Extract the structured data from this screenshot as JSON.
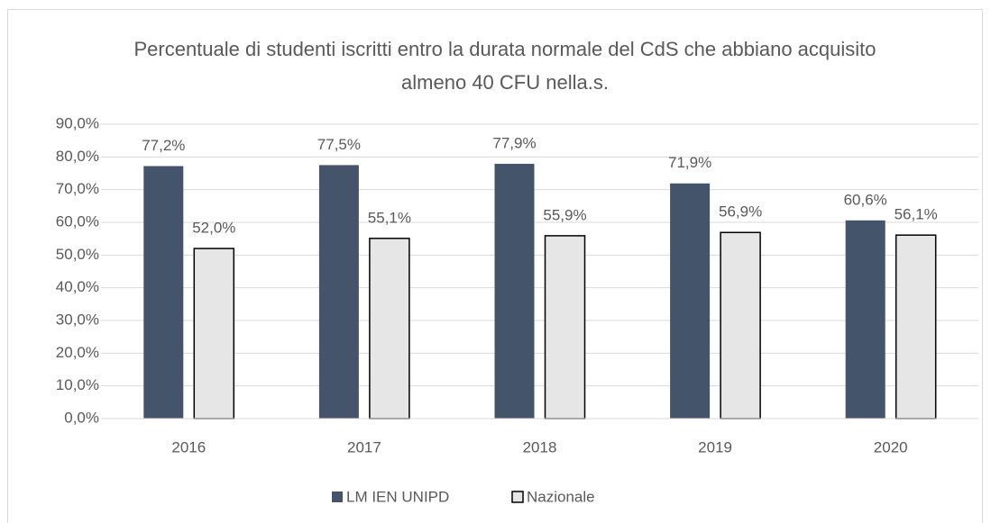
{
  "chart_data": {
    "type": "bar",
    "title": "Percentuale di studenti iscritti entro la durata normale del CdS che abbiano acquisito almeno 40 CFU nella.s.",
    "categories": [
      "2016",
      "2017",
      "2018",
      "2019",
      "2020"
    ],
    "series": [
      {
        "name": "LM IEN UNIPD",
        "color": "#44546a",
        "values": [
          77.2,
          77.5,
          77.9,
          71.9,
          60.6
        ],
        "value_labels": [
          "77,2%",
          "77,5%",
          "77,9%",
          "71,9%",
          "60,6%"
        ]
      },
      {
        "name": "Nazionale",
        "color": "#e7e6e6",
        "values": [
          52.0,
          55.1,
          55.9,
          56.9,
          56.1
        ],
        "value_labels": [
          "52,0%",
          "55,1%",
          "55,9%",
          "56,9%",
          "56,1%"
        ]
      }
    ],
    "ylim": [
      0,
      90
    ],
    "yticks": [
      {
        "value": 0,
        "label": "0,0%"
      },
      {
        "value": 10,
        "label": "10,0%"
      },
      {
        "value": 20,
        "label": "20,0%"
      },
      {
        "value": 30,
        "label": "30,0%"
      },
      {
        "value": 40,
        "label": "40,0%"
      },
      {
        "value": 50,
        "label": "50,0%"
      },
      {
        "value": 60,
        "label": "60,0%"
      },
      {
        "value": 70,
        "label": "70,0%"
      },
      {
        "value": 80,
        "label": "80,0%"
      },
      {
        "value": 90,
        "label": "90,0%"
      }
    ],
    "grid": true,
    "legend": "bottom"
  }
}
